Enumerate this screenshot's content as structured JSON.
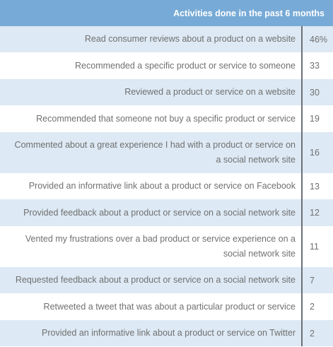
{
  "header": {
    "title": "Activities done in the past 6 months"
  },
  "chart_data": {
    "type": "table",
    "column_header": "Activities done in the past 6 months",
    "rows": [
      {
        "label": "Read consumer reviews about a product on a website",
        "value": "46%"
      },
      {
        "label": "Recommended a specific product or service to someone",
        "value": "33"
      },
      {
        "label": "Reviewed a product or service on a website",
        "value": "30"
      },
      {
        "label": "Recommended that someone not buy a specific product or service",
        "value": "19"
      },
      {
        "label": "Commented about a great experience I had with a product or service on a social network site",
        "value": "16"
      },
      {
        "label": "Provided an informative link about a product or service on Facebook",
        "value": "13"
      },
      {
        "label": "Provided feedback about a product or service on a social network site",
        "value": "12"
      },
      {
        "label": "Vented my frustrations over a bad product or service experience on a social network site",
        "value": "11"
      },
      {
        "label": "Requested feedback about a product or service on a social network site",
        "value": "7"
      },
      {
        "label": "Retweeted a tweet that was about a particular product or service",
        "value": "2"
      },
      {
        "label": "Provided an informative link about a product or service on Twitter",
        "value": "2"
      }
    ]
  }
}
